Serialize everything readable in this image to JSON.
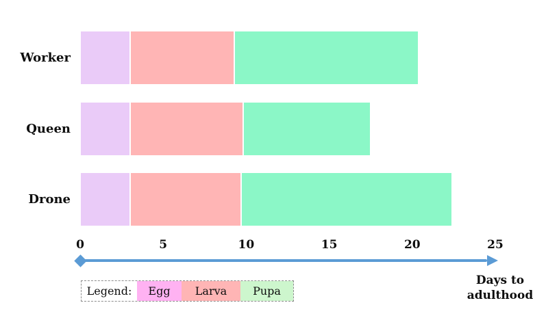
{
  "chart_data": {
    "type": "bar",
    "subtype": "stacked-horizontal",
    "title": "",
    "categories": [
      "Worker",
      "Queen",
      "Drone"
    ],
    "series": [
      {
        "name": "Egg",
        "values": [
          3.0,
          3.0,
          3.0
        ]
      },
      {
        "name": "Larva",
        "values": [
          6.3,
          6.8,
          6.7
        ]
      },
      {
        "name": "Pupa",
        "values": [
          11.1,
          7.7,
          12.7
        ]
      }
    ],
    "totals_days": [
      20.4,
      17.5,
      22.4
    ],
    "xlabel": "Days to adulthood",
    "xlim": [
      0,
      25
    ],
    "xticks": [
      0,
      5,
      10,
      15,
      20,
      25
    ],
    "grid": false,
    "legend_position": "bottom-left"
  },
  "legend": {
    "title": "Legend:",
    "items": [
      {
        "label": "Egg",
        "color": "#ffb2f2"
      },
      {
        "label": "Larva",
        "color": "#ffb5b5"
      },
      {
        "label": "Pupa",
        "color": "#cdf6cd"
      }
    ]
  },
  "axis": {
    "label": "Days to\nadulthood",
    "color": "#5b9bd5"
  },
  "colors": {
    "bar_egg": "#eacbf8",
    "bar_larva": "#ffb5b5",
    "bar_pupa": "#8bf7c7",
    "segment_border": "#ffffff",
    "text": "#0d0d0d",
    "legend_border": "#8c8c8c"
  }
}
